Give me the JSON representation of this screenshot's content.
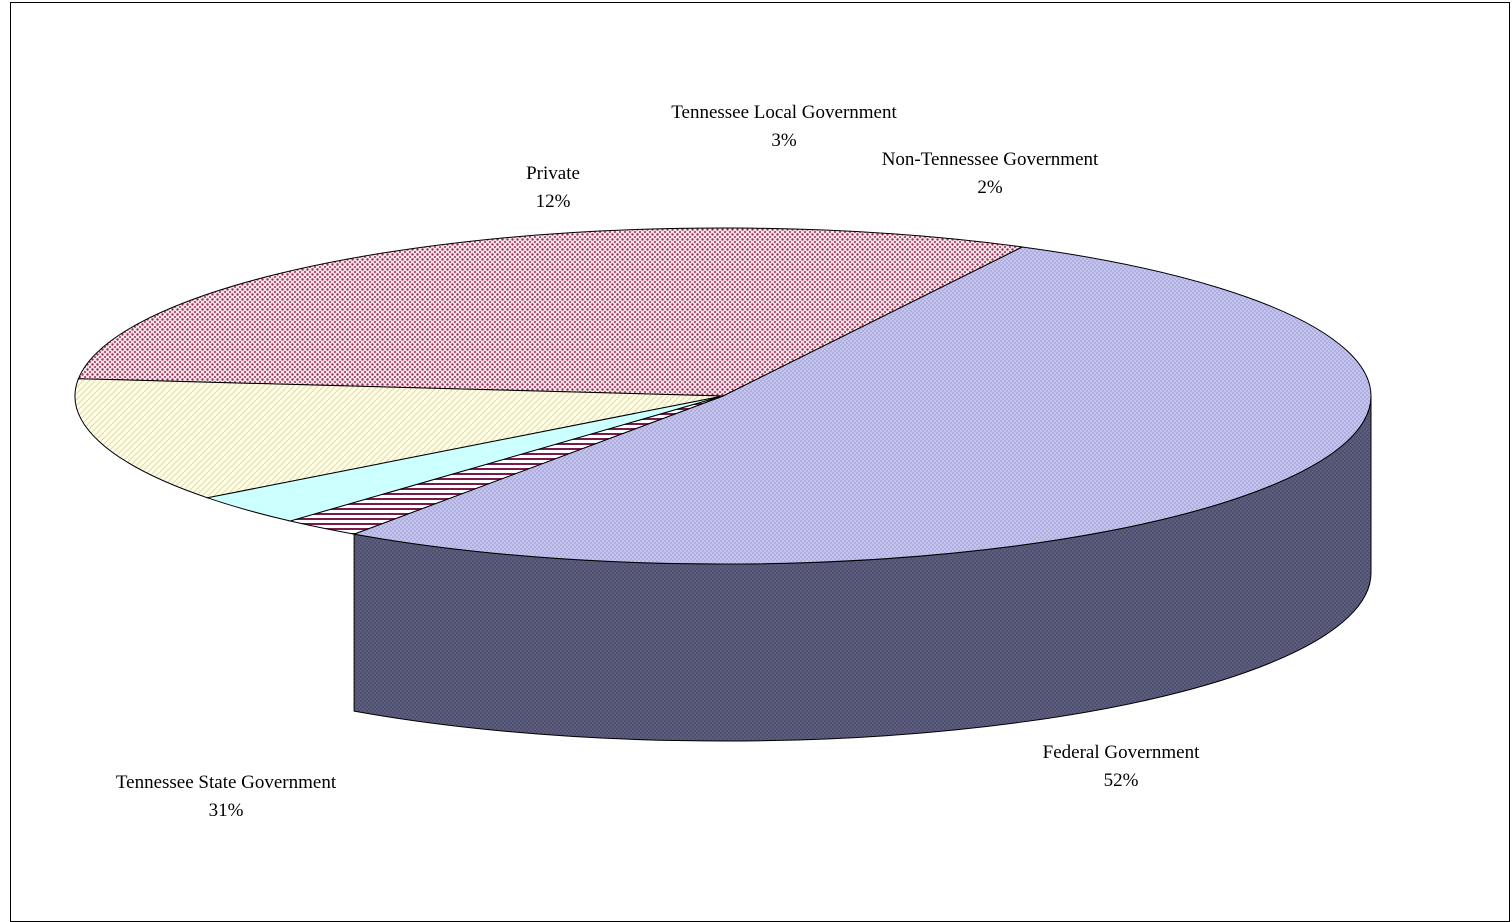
{
  "chart_data": {
    "type": "pie",
    "title": "",
    "three_d": true,
    "slices": [
      {
        "label": "Federal Government",
        "value": 52,
        "value_label": "52%",
        "color": "#c7c7f2",
        "side_color": "#5f5f80",
        "pattern": "fine-crosshatch"
      },
      {
        "label": "Tennessee State Government",
        "value": 31,
        "value_label": "31%",
        "color": "#f5e4ea",
        "side_color": "#6e2e44",
        "pattern": "dots"
      },
      {
        "label": "Private",
        "value": 12,
        "value_label": "12%",
        "color": "#fffbe2",
        "side_color": "#c8c29a",
        "pattern": "diagonal-stripes"
      },
      {
        "label": "Tennessee Local Government",
        "value": 3,
        "value_label": "3%",
        "color": "#ccffff",
        "side_color": "#7fb0b0",
        "pattern": "solid"
      },
      {
        "label": "Non-Tennessee Government",
        "value": 2,
        "value_label": "2%",
        "color": "#ffffff",
        "side_color": "#7a1a4a",
        "pattern": "horizontal-stripes"
      }
    ],
    "legend": "none"
  }
}
